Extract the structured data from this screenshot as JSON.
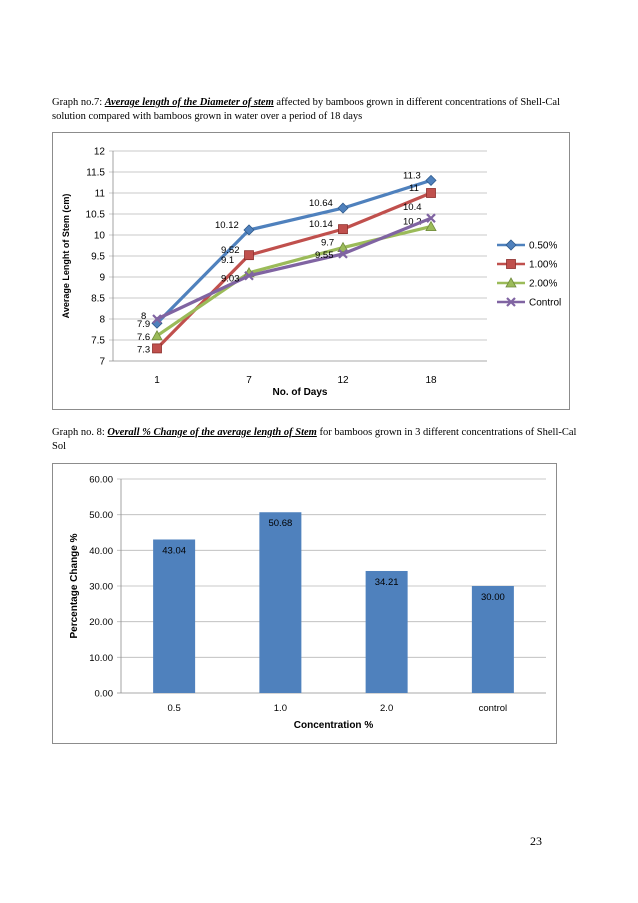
{
  "page": {
    "number": "23"
  },
  "graph7": {
    "caption_prefix": "Graph no.7: ",
    "caption_em1": "Average length of the ",
    "caption_em2": "Diameter of stem",
    "caption_rest": " affected by bamboos grown in different concentrations of Shell-Cal solution compared with bamboos grown in water over a period of 18 days"
  },
  "graph8": {
    "caption_prefix": "Graph no. 8: ",
    "caption_em": "Overall % Change of the average length of Stem",
    "caption_rest": " for bamboos grown in 3 different concentrations of Shell-Cal Sol"
  },
  "chart_data": [
    {
      "type": "line",
      "title": "",
      "xlabel": "No. of Days",
      "ylabel": "Average Lenght of Stem (cm)",
      "categories": [
        "1",
        "7",
        "12",
        "18"
      ],
      "ylim": [
        7,
        12
      ],
      "yticks": [
        "7",
        "7.5",
        "8",
        "8.5",
        "9",
        "9.5",
        "10",
        "10.5",
        "11",
        "11.5",
        "12"
      ],
      "grid": true,
      "legend": "right",
      "series": [
        {
          "name": "0.50%",
          "color": "#4f81bd",
          "marker": "diamond",
          "values": [
            7.9,
            10.12,
            10.64,
            11.3
          ],
          "labels": [
            "7.9",
            "10.12",
            "10.64",
            "11.3"
          ]
        },
        {
          "name": "1.00%",
          "color": "#c0504d",
          "marker": "square",
          "values": [
            7.3,
            9.52,
            10.14,
            11
          ],
          "labels": [
            "7.3",
            "9.52",
            "10.14",
            "11"
          ]
        },
        {
          "name": "2.00%",
          "color": "#9bbb59",
          "marker": "triangle",
          "values": [
            7.6,
            9.1,
            9.7,
            10.2
          ],
          "labels": [
            "7.6",
            "9.1",
            "9.7",
            "10.2"
          ]
        },
        {
          "name": "Control",
          "color": "#8064a2",
          "marker": "x",
          "values": [
            8,
            9.03,
            9.55,
            10.4
          ],
          "labels": [
            "8",
            "9.03",
            "9.55",
            "10.4"
          ]
        }
      ]
    },
    {
      "type": "bar",
      "title": "",
      "xlabel": "Concentration %",
      "ylabel": "Percentage Change %",
      "categories": [
        "0.5",
        "1.0",
        "2.0",
        "control"
      ],
      "values": [
        43.04,
        50.68,
        34.21,
        30.0
      ],
      "labels": [
        "43.04",
        "50.68",
        "34.21",
        "30.00"
      ],
      "ylim": [
        0,
        60
      ],
      "yticks": [
        "0.00",
        "10.00",
        "20.00",
        "30.00",
        "40.00",
        "50.00",
        "60.00"
      ],
      "grid": true,
      "color": "#4f81bd"
    }
  ]
}
